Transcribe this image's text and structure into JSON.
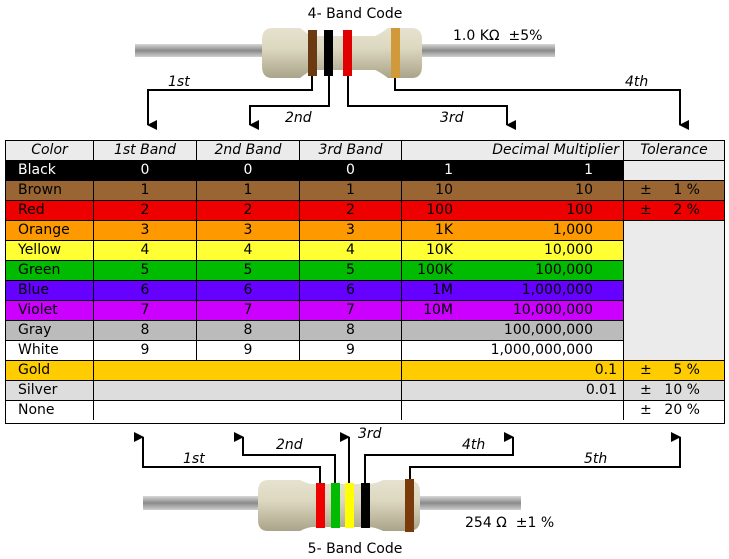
{
  "four_band": {
    "title": "4- Band Code",
    "value_label": "1.0 KΩ  ±5%",
    "band_colors": [
      "#6b3a10",
      "#000000",
      "#e00000",
      "#d09a3a"
    ],
    "labels": [
      "1st",
      "2nd",
      "3rd",
      "4th"
    ]
  },
  "five_band": {
    "title": "5- Band Code",
    "value_label": "254 Ω  ±1 %",
    "band_colors": [
      "#ee0000",
      "#00bb00",
      "#ffff00",
      "#000000",
      "#7a3a0a"
    ],
    "labels": [
      "1st",
      "2nd",
      "3rd",
      "4th",
      "5th"
    ]
  },
  "table": {
    "headers": [
      "Color",
      "1st Band",
      "2nd Band",
      "3rd Band",
      "Decimal Multiplier",
      "Tolerance"
    ],
    "rows": [
      {
        "color": "Black",
        "bg": "#000000",
        "fg": "#ffffff",
        "b1": "0",
        "b2": "0",
        "b3": "0",
        "mult_short": "1",
        "mult_long": "1",
        "tol": ""
      },
      {
        "color": "Brown",
        "bg": "#996633",
        "fg": "#000000",
        "b1": "1",
        "b2": "1",
        "b3": "1",
        "mult_short": "10",
        "mult_long": "10",
        "tol": "1 %"
      },
      {
        "color": "Red",
        "bg": "#ee0000",
        "fg": "#000000",
        "b1": "2",
        "b2": "2",
        "b3": "2",
        "mult_short": "100",
        "mult_long": "100",
        "tol": "2 %"
      },
      {
        "color": "Orange",
        "bg": "#ff9900",
        "fg": "#000000",
        "b1": "3",
        "b2": "3",
        "b3": "3",
        "mult_short": "1K",
        "mult_long": "1,000",
        "tol": ""
      },
      {
        "color": "Yellow",
        "bg": "#ffff33",
        "fg": "#000000",
        "b1": "4",
        "b2": "4",
        "b3": "4",
        "mult_short": "10K",
        "mult_long": "10,000",
        "tol": ""
      },
      {
        "color": "Green",
        "bg": "#00bb00",
        "fg": "#000000",
        "b1": "5",
        "b2": "5",
        "b3": "5",
        "mult_short": "100K",
        "mult_long": "100,000",
        "tol": ""
      },
      {
        "color": "Blue",
        "bg": "#6600ff",
        "fg": "#000000",
        "b1": "6",
        "b2": "6",
        "b3": "6",
        "mult_short": "1M",
        "mult_long": "1,000,000",
        "tol": ""
      },
      {
        "color": "Violet",
        "bg": "#cc00ff",
        "fg": "#000000",
        "b1": "7",
        "b2": "7",
        "b3": "7",
        "mult_short": "10M",
        "mult_long": "10,000,000",
        "tol": ""
      },
      {
        "color": "Gray",
        "bg": "#bbbbbb",
        "fg": "#000000",
        "b1": "8",
        "b2": "8",
        "b3": "8",
        "mult_short": "",
        "mult_long": "100,000,000",
        "tol": ""
      },
      {
        "color": "White",
        "bg": "#ffffff",
        "fg": "#000000",
        "b1": "9",
        "b2": "9",
        "b3": "9",
        "mult_short": "",
        "mult_long": "1,000,000,000",
        "tol": ""
      },
      {
        "color": "Gold",
        "bg": "#ffcc00",
        "fg": "#000000",
        "mult": "0.1",
        "tol": "5 %"
      },
      {
        "color": "Silver",
        "bg": "#dddddd",
        "fg": "#000000",
        "mult": "0.01",
        "tol": "10 %"
      },
      {
        "color": "None",
        "bg": "#ffffff",
        "fg": "#000000",
        "mult": "",
        "tol": "20 %"
      }
    ],
    "pm_symbol": "±",
    "tolerance_empty_bg": "#ebebeb"
  }
}
